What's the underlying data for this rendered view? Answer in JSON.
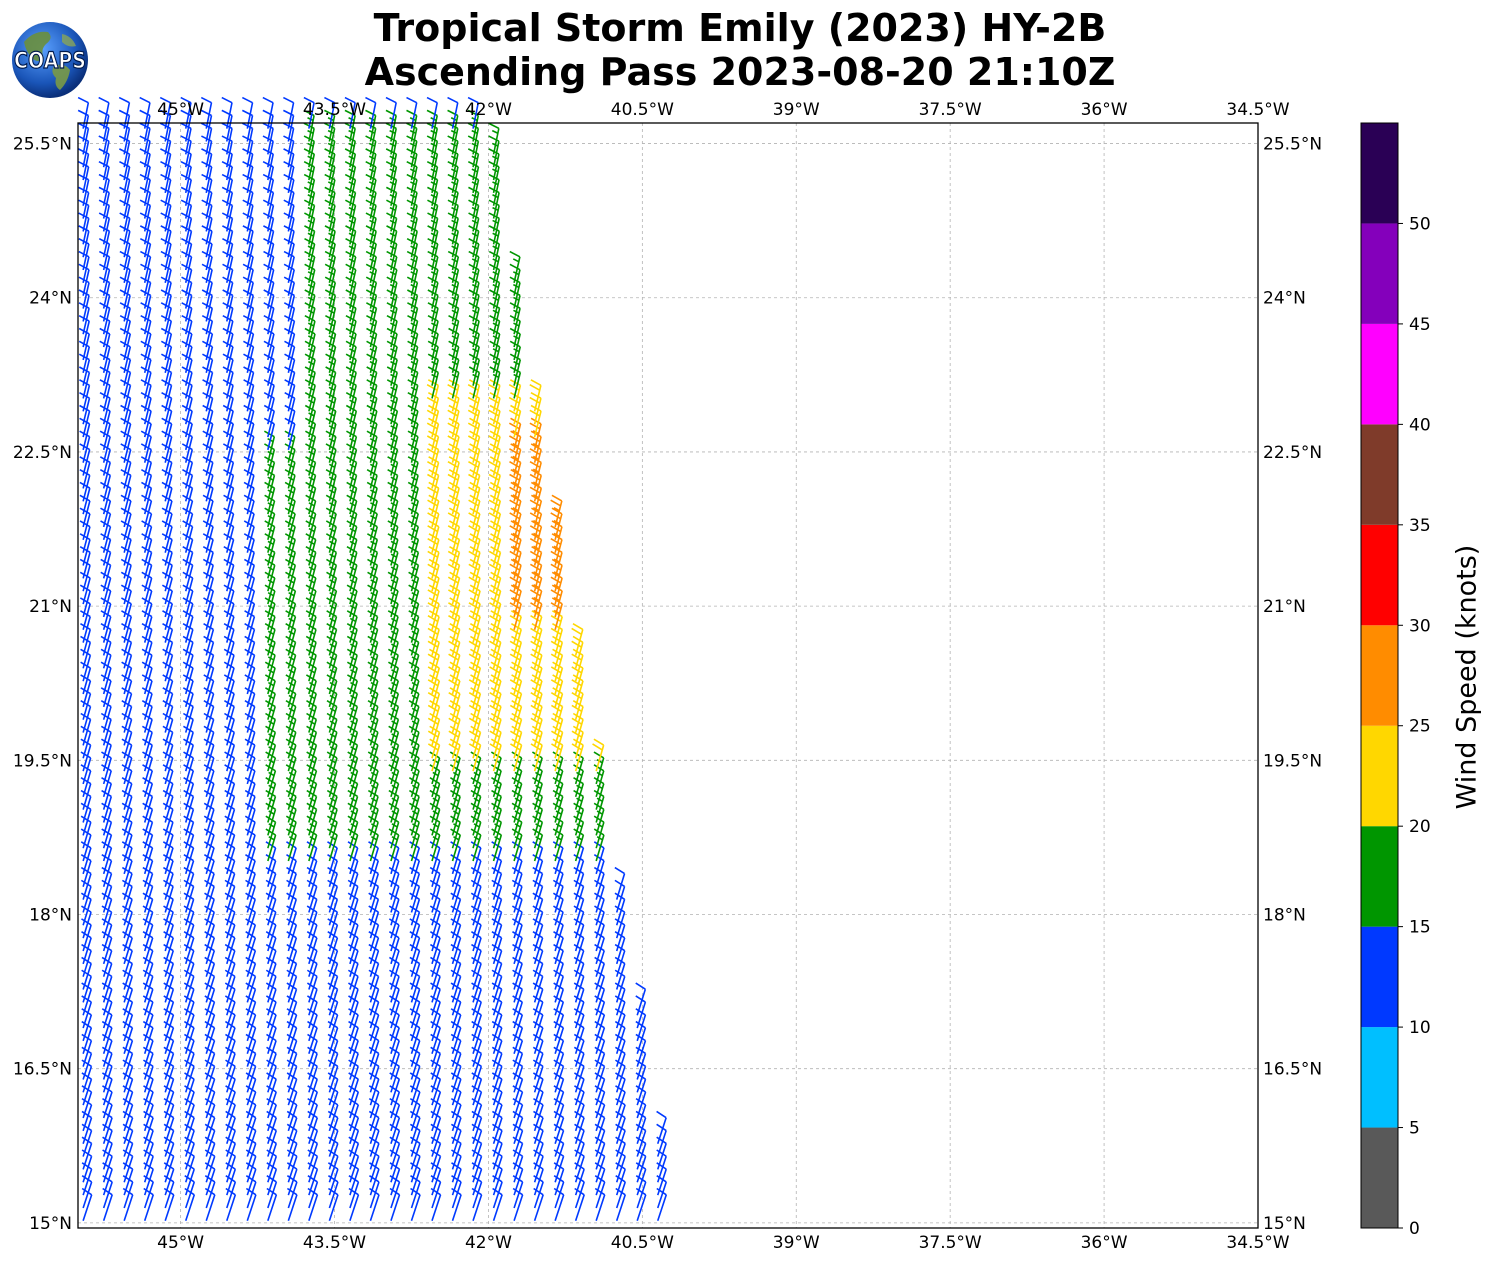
{
  "title": {
    "line1": "Tropical Storm Emily (2023) HY-2B",
    "line2": "Ascending Pass 2023-08-20 21:10Z"
  },
  "logo": {
    "text": "COAPS",
    "icon": "globe-icon"
  },
  "map": {
    "lon_range_deg_east": [
      -46.0,
      -34.5
    ],
    "lat_range_deg": [
      14.95,
      25.7
    ],
    "lon_ticks": [
      -45,
      -43.5,
      -42,
      -40.5,
      -39,
      -37.5,
      -36,
      -34.5
    ],
    "lon_tick_labels": [
      "45°W",
      "43.5°W",
      "42°W",
      "40.5°W",
      "39°W",
      "37.5°W",
      "36°W",
      "34.5°W"
    ],
    "lat_ticks": [
      15,
      16.5,
      18,
      19.5,
      21,
      22.5,
      24,
      25.5
    ],
    "lat_tick_labels": [
      "15°N",
      "16.5°N",
      "18°N",
      "19.5°N",
      "21°N",
      "22.5°N",
      "24°N",
      "25.5°N"
    ],
    "grid": true,
    "grid_style": "dashed gray"
  },
  "colorbar": {
    "label": "Wind Speed (knots)",
    "bounds": [
      0,
      5,
      10,
      15,
      20,
      25,
      30,
      35,
      40,
      45,
      50,
      55
    ],
    "tick_labels": [
      "0",
      "5",
      "10",
      "15",
      "20",
      "25",
      "30",
      "35",
      "40",
      "45",
      "50"
    ],
    "colors": [
      "#595959",
      "#00bfff",
      "#0039ff",
      "#009600",
      "#ffd700",
      "#ff8c00",
      "#ff0000",
      "#7f3b2a",
      "#ff00ff",
      "#8400bb",
      "#2a0055"
    ]
  },
  "swath": {
    "corners_lonlat": {
      "top_left": [
        -46.0,
        25.7
      ],
      "top_right": [
        -42.0,
        25.7
      ],
      "bottom_right": [
        -40.2,
        14.95
      ],
      "bottom_left": [
        -46.0,
        14.95
      ]
    },
    "wind_regions": [
      {
        "name": "weak south-east edge",
        "speed_kt": 7,
        "lon": [
          -41.0,
          -40.3
        ],
        "lat": [
          15.0,
          16.5
        ]
      },
      {
        "name": "northern green band",
        "speed_kt": 17,
        "lon": [
          -43.8,
          -41.5
        ],
        "lat": [
          22.4,
          25.6
        ]
      },
      {
        "name": "central green band",
        "speed_kt": 17,
        "lon": [
          -44.3,
          -40.6
        ],
        "lat": [
          18.5,
          22.4
        ]
      },
      {
        "name": "yellow core",
        "speed_kt": 22,
        "lon": [
          -42.6,
          -40.9
        ],
        "lat": [
          19.3,
          22.9
        ]
      },
      {
        "name": "orange core",
        "speed_kt": 27,
        "lon": [
          -41.8,
          -40.9
        ],
        "lat": [
          20.7,
          22.6
        ]
      },
      {
        "name": "background",
        "speed_kt": 12,
        "lon": [
          -46.0,
          -40.2
        ],
        "lat": [
          14.95,
          25.7
        ]
      }
    ]
  }
}
